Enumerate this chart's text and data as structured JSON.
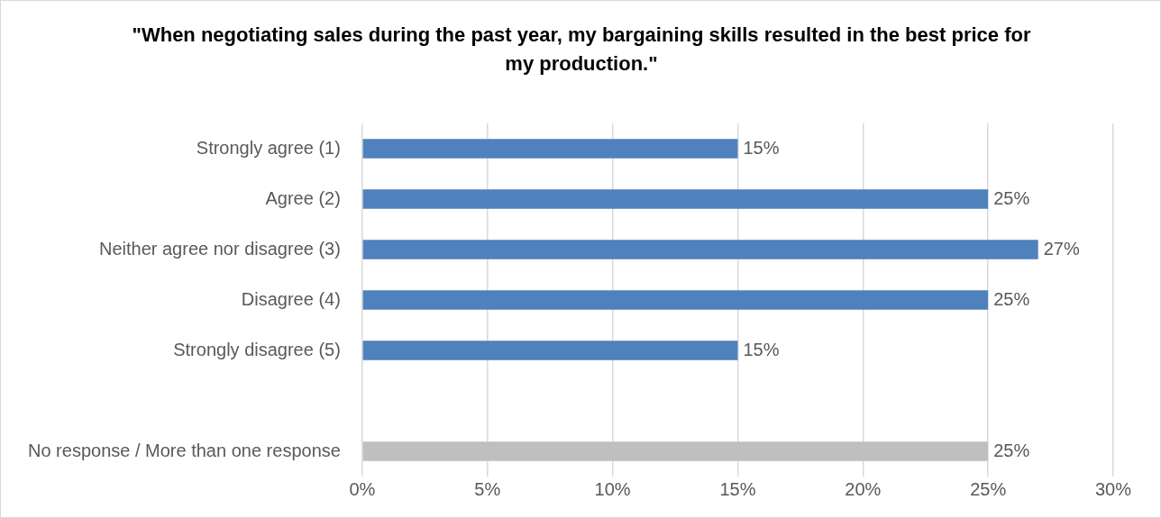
{
  "chart_data": {
    "type": "bar",
    "orientation": "horizontal",
    "title": "\"When negotiating sales during the past year, my bargaining skills resulted in the best price for my production.\"",
    "categories": [
      "Strongly agree (1)",
      "Agree (2)",
      "Neither agree nor disagree (3)",
      "Disagree (4)",
      "Strongly disagree (5)",
      null,
      "No response / More than one response"
    ],
    "values": [
      15,
      25,
      27,
      25,
      15,
      null,
      25
    ],
    "colors": [
      "#4f81bd",
      "#4f81bd",
      "#4f81bd",
      "#4f81bd",
      "#4f81bd",
      "#4f81bd",
      "#bfbfbf"
    ],
    "value_labels": [
      "15%",
      "25%",
      "27%",
      "25%",
      "15%",
      null,
      "25%"
    ],
    "xlim": [
      0,
      30
    ],
    "xticks": [
      {
        "value": 0,
        "label": "0%"
      },
      {
        "value": 5,
        "label": "5%"
      },
      {
        "value": 10,
        "label": "10%"
      },
      {
        "value": 15,
        "label": "15%"
      },
      {
        "value": 20,
        "label": "20%"
      },
      {
        "value": 25,
        "label": "25%"
      },
      {
        "value": 30,
        "label": "30%"
      }
    ],
    "grid": "x",
    "legend": false
  }
}
